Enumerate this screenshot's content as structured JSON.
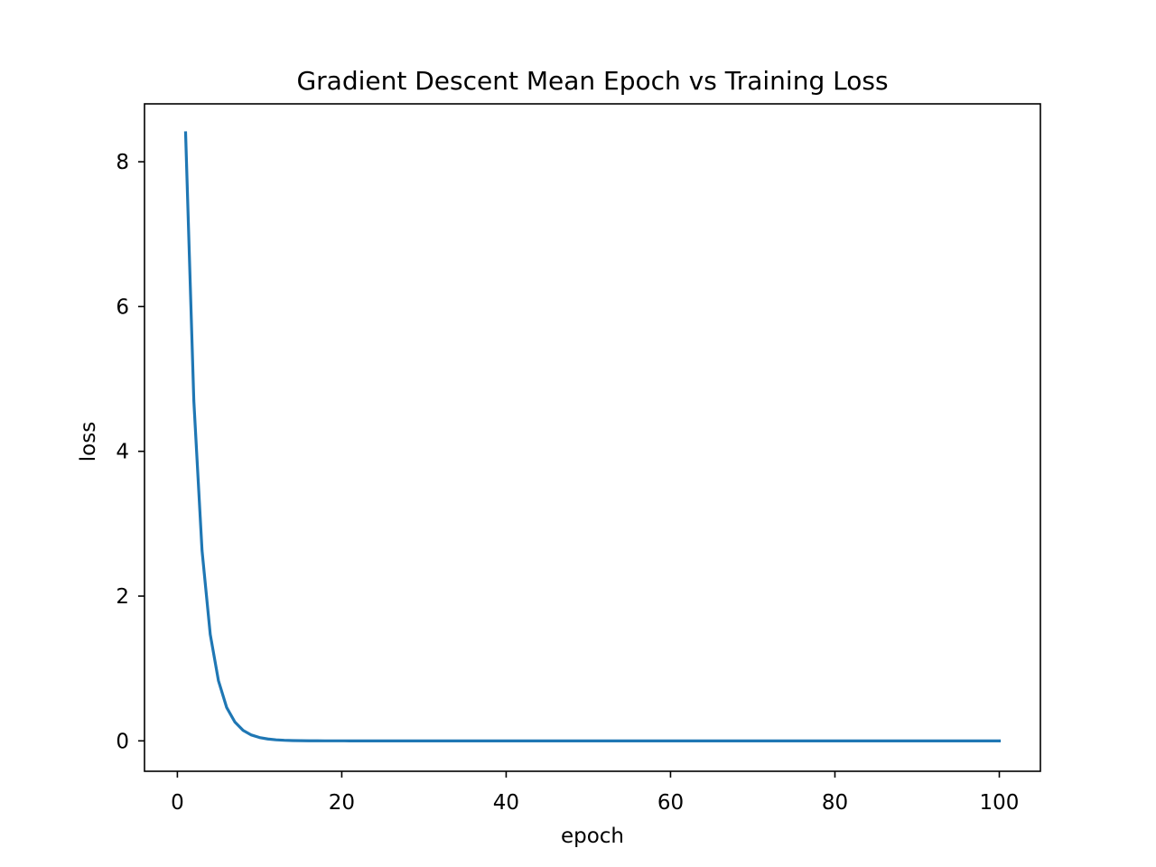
{
  "chart_data": {
    "type": "line",
    "title": "Gradient Descent Mean Epoch vs Training Loss",
    "xlabel": "epoch",
    "ylabel": "loss",
    "xlim": [
      -4,
      105
    ],
    "ylim": [
      -0.42,
      8.8
    ],
    "x_ticks": [
      0,
      20,
      40,
      60,
      80,
      100
    ],
    "y_ticks": [
      0,
      2,
      4,
      6,
      8
    ],
    "grid": false,
    "legend": "none",
    "color": "#1f77b4",
    "series": [
      {
        "x": [
          1,
          2,
          3,
          4,
          5,
          6,
          7,
          8,
          9,
          10,
          11,
          12,
          13,
          14,
          15,
          16,
          17,
          18,
          19,
          20,
          21,
          22,
          23,
          24,
          25,
          26,
          27,
          28,
          29,
          30,
          31,
          32,
          33,
          34,
          35,
          36,
          37,
          38,
          39,
          40,
          41,
          42,
          43,
          44,
          45,
          46,
          47,
          48,
          49,
          50,
          51,
          52,
          53,
          54,
          55,
          56,
          57,
          58,
          59,
          60,
          61,
          62,
          63,
          64,
          65,
          66,
          67,
          68,
          69,
          70,
          71,
          72,
          73,
          74,
          75,
          76,
          77,
          78,
          79,
          80,
          81,
          82,
          83,
          84,
          85,
          86,
          87,
          88,
          89,
          90,
          91,
          92,
          93,
          94,
          95,
          96,
          97,
          98,
          99,
          100
        ],
        "values": [
          8.4,
          4.7,
          2.63,
          1.47,
          0.83,
          0.46,
          0.26,
          0.145,
          0.081,
          0.046,
          0.026,
          0.014,
          0.008,
          0.0045,
          0.0025,
          0.0014,
          0.0008,
          0.0004,
          0.0002,
          0.0001,
          0,
          0,
          0,
          0,
          0,
          0,
          0,
          0,
          0,
          0,
          0,
          0,
          0,
          0,
          0,
          0,
          0,
          0,
          0,
          0,
          0,
          0,
          0,
          0,
          0,
          0,
          0,
          0,
          0,
          0,
          0,
          0,
          0,
          0,
          0,
          0,
          0,
          0,
          0,
          0,
          0,
          0,
          0,
          0,
          0,
          0,
          0,
          0,
          0,
          0,
          0,
          0,
          0,
          0,
          0,
          0,
          0,
          0,
          0,
          0,
          0,
          0,
          0,
          0,
          0,
          0,
          0,
          0,
          0,
          0,
          0,
          0,
          0,
          0,
          0,
          0,
          0,
          0,
          0,
          0
        ]
      }
    ]
  }
}
